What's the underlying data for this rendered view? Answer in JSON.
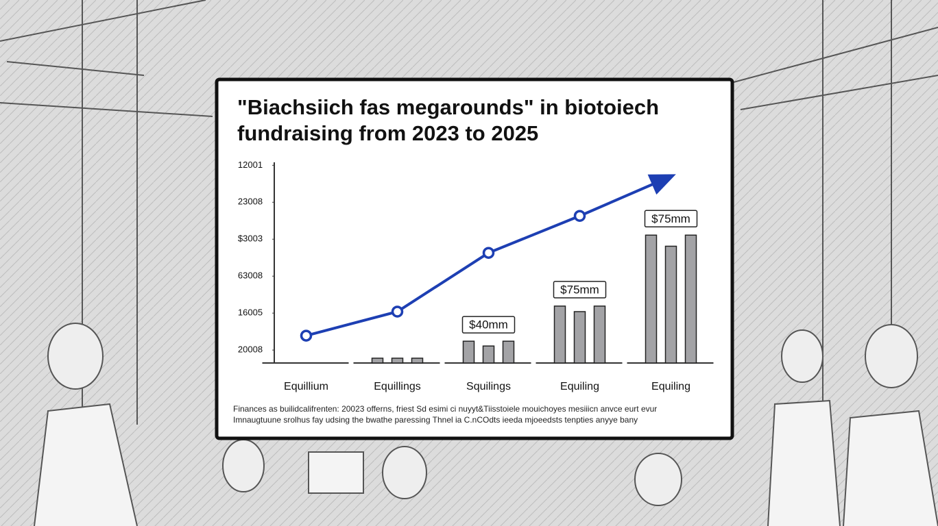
{
  "chart_data": {
    "type": "bar",
    "title": "\"Biachsiich fas megarounds\" in biotoiech fundraising from 2023 to 2025",
    "categories": [
      "Equillium",
      "Equillings",
      "Squilings",
      "Equiling",
      "Equiling"
    ],
    "series": [
      {
        "color": "#a3a3a6",
        "values": [
          null,
          -0.22,
          0.24,
          1.19,
          3.11
        ]
      },
      {
        "color": "#a3a3a6",
        "values": [
          null,
          -0.22,
          0.11,
          1.04,
          2.81
        ]
      },
      {
        "color": "#a3a3a6",
        "values": [
          null,
          -0.22,
          0.24,
          1.19,
          3.11
        ]
      }
    ],
    "bar_labels": [
      null,
      null,
      "$40mm",
      "$75mm",
      "$75mm"
    ],
    "trend": {
      "color": "#1d3fb3",
      "values": [
        0.39,
        1.04,
        2.63,
        3.63,
        4.7
      ]
    },
    "ylim": [
      -0.35,
      5.08
    ],
    "yticks": [
      {
        "value": 0,
        "label": "20008"
      },
      {
        "value": 1,
        "label": "16005"
      },
      {
        "value": 2,
        "label": "63008"
      },
      {
        "value": 3,
        "label": "$3003"
      },
      {
        "value": 4,
        "label": "23008"
      },
      {
        "value": 5,
        "label": "12001"
      }
    ],
    "footnote": [
      "Finances as builidcalifrenten: 20023 offerns, friest Sd esimi ci nuyyt&Tiisstoiele mouichoyes mesiiicn anvce eurt evur",
      "Imnaugtuune srolhus fay udsing the bwathe paressing Thnel ia C.nCOdts ieeda mjoeedsts tenpties anyye bany"
    ]
  }
}
